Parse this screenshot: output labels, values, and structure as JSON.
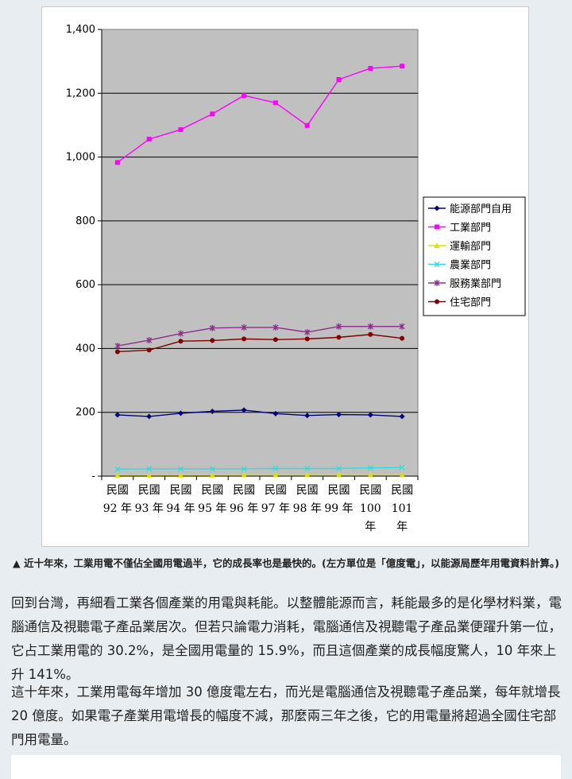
{
  "chart_data": {
    "type": "line",
    "categories": [
      [
        "民國",
        "92 年"
      ],
      [
        "民國",
        "93 年"
      ],
      [
        "民國",
        "94 年"
      ],
      [
        "民國",
        "95 年"
      ],
      [
        "民國",
        "96 年"
      ],
      [
        "民國",
        "97 年"
      ],
      [
        "民國",
        "98 年"
      ],
      [
        "民國",
        "99 年"
      ],
      [
        "民國",
        "100",
        "年"
      ],
      [
        "民國",
        "101",
        "年"
      ]
    ],
    "y_tick_labels": [
      "-",
      "200",
      "400",
      "600",
      "800",
      "1,000",
      "1,200",
      "1,400"
    ],
    "ylim": [
      0,
      1400
    ],
    "grid": true,
    "legend_position": "right",
    "series": [
      {
        "name": "能源部門自用",
        "color": "#000080",
        "marker": "diamond",
        "values": [
          192,
          187,
          197,
          203,
          207,
          196,
          190,
          193,
          192,
          187
        ]
      },
      {
        "name": "工業部門",
        "color": "#ff00ff",
        "marker": "square",
        "values": [
          983,
          1056,
          1086,
          1135,
          1193,
          1170,
          1099,
          1243,
          1278,
          1285
        ]
      },
      {
        "name": "運輸部門",
        "color": "#e0e000",
        "marker": "triangle",
        "values": [
          3,
          3,
          3,
          3,
          4,
          4,
          4,
          4,
          4,
          4
        ]
      },
      {
        "name": "農業部門",
        "color": "#33dddd",
        "marker": "x",
        "values": [
          22,
          23,
          23,
          23,
          23,
          24,
          24,
          24,
          26,
          27
        ]
      },
      {
        "name": "服務業部門",
        "color": "#8a2f8a",
        "marker": "star",
        "values": [
          408,
          426,
          447,
          464,
          466,
          466,
          451,
          469,
          469,
          469
        ]
      },
      {
        "name": "住宅部門",
        "color": "#800000",
        "marker": "circle",
        "values": [
          390,
          395,
          423,
          425,
          430,
          428,
          430,
          435,
          444,
          432
        ]
      }
    ]
  },
  "caption": "▲ 近十年來，工業用電不僅佔全國用電過半，它的成長率也是最快的。(左方單位是「億度電」，以能源局歷年用電資料計算。)",
  "paragraphs": [
    "回到台灣，再細看工業各個產業的用電與耗能。以整體能源而言，耗能最多的是化學材料業，電腦通信及視聽電子產品業居次。但若只論電力消耗，電腦通信及視聽電子產品業便躍升第一位，它占工業用電的 30.2%，是全國用電量的 15.9%，而且這個產業的成長幅度驚人，10 年來上升 141%。",
    "這十年來，工業用電每年增加 30 億度電左右，而光是電腦通信及視聽電子產品業，每年就增長 20 億度。如果電子產業用電增長的幅度不減，那麼兩三年之後，它的用電量將超過全國住宅部門用電量。"
  ],
  "colors": {
    "plot_background": "#c0c0c0",
    "page_background": "#e8edf1"
  }
}
